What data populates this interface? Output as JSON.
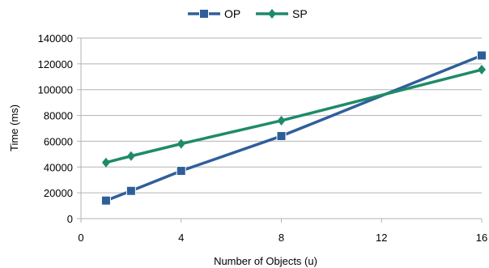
{
  "chart_data": {
    "type": "line",
    "title": "",
    "xlabel": "Number of Objects (u)",
    "ylabel": "Time (ms)",
    "xlim": [
      0,
      16
    ],
    "ylim": [
      0,
      140000
    ],
    "x_ticks": [
      0,
      4,
      8,
      12,
      16
    ],
    "y_ticks": [
      0,
      20000,
      40000,
      60000,
      80000,
      100000,
      120000,
      140000
    ],
    "grid": "horizontal",
    "legend_position": "top-center",
    "series": [
      {
        "name": "OP",
        "color": "#2f5f9a",
        "marker": "square",
        "x": [
          1,
          2,
          4,
          8,
          16
        ],
        "values": [
          14000,
          21500,
          37000,
          64000,
          126500
        ]
      },
      {
        "name": "SP",
        "color": "#1f8a6a",
        "marker": "diamond",
        "x": [
          1,
          2,
          4,
          8,
          16
        ],
        "values": [
          43500,
          48500,
          58000,
          76000,
          115500
        ]
      }
    ]
  }
}
